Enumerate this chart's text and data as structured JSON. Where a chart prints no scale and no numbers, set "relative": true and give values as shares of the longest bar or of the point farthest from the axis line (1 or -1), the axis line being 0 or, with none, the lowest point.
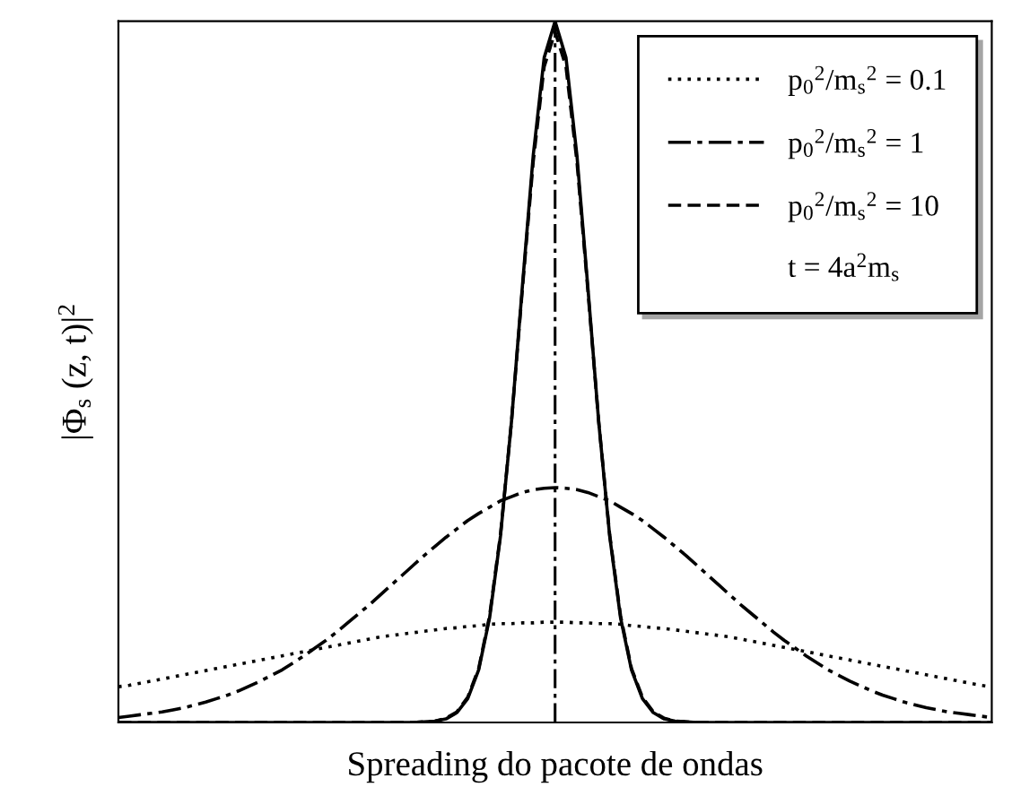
{
  "chart_data": {
    "type": "line",
    "relative": true,
    "ylabel": "|Φ$_{s}$ (z, t)|$^{2}$",
    "xlabel": "Spreading do pacote de ondas",
    "categories": [
      null,
      null,
      null,
      null,
      null,
      null,
      null,
      null,
      null,
      null,
      null,
      null,
      null,
      null,
      null,
      null,
      null,
      null,
      null,
      null,
      null,
      null,
      null,
      null,
      null,
      null,
      null,
      null,
      null,
      null,
      null,
      null,
      null,
      null,
      null,
      null,
      null,
      null,
      null,
      null,
      null,
      null,
      null,
      null,
      null,
      null,
      null,
      null,
      null,
      null,
      null,
      null,
      null,
      null,
      null,
      null,
      null,
      null,
      null,
      null,
      null,
      null,
      null,
      null,
      null,
      null,
      null,
      null,
      null,
      null,
      null,
      null,
      null,
      null,
      null,
      null,
      null,
      null,
      null,
      null,
      null
    ],
    "series": [
      {
        "color": "#000000",
        "line_style": "solid",
        "values": [
          0,
          0,
          0,
          0,
          0,
          0,
          0,
          0,
          0,
          0,
          0,
          0,
          0,
          0,
          0,
          0,
          0,
          0,
          0,
          0,
          0,
          0,
          0,
          0,
          0,
          0,
          0,
          0,
          0.001,
          0.002,
          0.005,
          0.014,
          0.034,
          0.075,
          0.149,
          0.266,
          0.428,
          0.621,
          0.809,
          0.948,
          1,
          0.948,
          0.809,
          0.621,
          0.428,
          0.266,
          0.149,
          0.075,
          0.034,
          0.014,
          0.005,
          0.002,
          0.001,
          0,
          0,
          0,
          0,
          0,
          0,
          0,
          0,
          0,
          0,
          0,
          0,
          0,
          0,
          0,
          0,
          0,
          0,
          0,
          0,
          0,
          0,
          0,
          0,
          0,
          0,
          0,
          0
        ]
      },
      {
        "name": "p$_{0}$$^{2}$/m$_{s}$$^{2}$ = 0.1",
        "color": "#000000",
        "line_style": "dotted",
        "values": [
          0.051,
          0.053,
          0.056,
          0.059,
          0.062,
          0.065,
          0.068,
          0.071,
          0.074,
          0.077,
          0.08,
          0.083,
          0.086,
          0.089,
          0.092,
          0.095,
          0.098,
          0.101,
          0.104,
          0.107,
          0.11,
          0.113,
          0.116,
          0.119,
          0.122,
          0.124,
          0.126,
          0.128,
          0.13,
          0.132,
          0.134,
          0.135,
          0.137,
          0.138,
          0.14,
          0.141,
          0.141,
          0.142,
          0.142,
          0.143,
          0.143,
          0.143,
          0.142,
          0.142,
          0.141,
          0.141,
          0.14,
          0.138,
          0.137,
          0.135,
          0.134,
          0.132,
          0.13,
          0.128,
          0.126,
          0.124,
          0.122,
          0.119,
          0.116,
          0.113,
          0.11,
          0.107,
          0.104,
          0.101,
          0.098,
          0.095,
          0.092,
          0.089,
          0.086,
          0.083,
          0.08,
          0.077,
          0.074,
          0.071,
          0.068,
          0.065,
          0.062,
          0.059,
          0.056,
          0.053,
          0.051
        ]
      },
      {
        "name": "p$_{0}$$^{2}$/m$_{s}$$^{2}$ = 1",
        "color": "#000000",
        "line_style": "dashdot",
        "values": [
          0.007,
          0.009,
          0.011,
          0.013,
          0.015,
          0.018,
          0.021,
          0.025,
          0.029,
          0.034,
          0.039,
          0.045,
          0.052,
          0.059,
          0.067,
          0.075,
          0.085,
          0.095,
          0.106,
          0.117,
          0.129,
          0.142,
          0.155,
          0.168,
          0.182,
          0.196,
          0.21,
          0.224,
          0.238,
          0.251,
          0.264,
          0.276,
          0.288,
          0.298,
          0.307,
          0.316,
          0.322,
          0.328,
          0.332,
          0.334,
          0.335,
          0.334,
          0.332,
          0.328,
          0.322,
          0.316,
          0.307,
          0.298,
          0.288,
          0.276,
          0.264,
          0.251,
          0.238,
          0.224,
          0.21,
          0.196,
          0.182,
          0.168,
          0.155,
          0.142,
          0.129,
          0.117,
          0.106,
          0.095,
          0.085,
          0.075,
          0.067,
          0.059,
          0.052,
          0.045,
          0.039,
          0.034,
          0.029,
          0.025,
          0.021,
          0.018,
          0.015,
          0.013,
          0.011,
          0.009,
          0.007
        ]
      },
      {
        "name": "p$_{0}$$^{2}$/m$_{s}$$^{2}$ = 10",
        "color": "#000000",
        "line_style": "dashed",
        "values": [
          0,
          0,
          0,
          0,
          0,
          0,
          0,
          0,
          0,
          0,
          0,
          0,
          0,
          0,
          0,
          0,
          0,
          0,
          0,
          0,
          0,
          0,
          0,
          0,
          0,
          0,
          0,
          0,
          0.001,
          0.002,
          0.006,
          0.015,
          0.036,
          0.077,
          0.152,
          0.268,
          0.428,
          0.617,
          0.8,
          0.935,
          0.985,
          0.935,
          0.8,
          0.617,
          0.428,
          0.268,
          0.152,
          0.077,
          0.036,
          0.015,
          0.006,
          0.002,
          0.001,
          0,
          0,
          0,
          0,
          0,
          0,
          0,
          0,
          0,
          0,
          0,
          0,
          0,
          0,
          0,
          0,
          0,
          0,
          0,
          0,
          0,
          0,
          0,
          0,
          0,
          0,
          0,
          0
        ]
      }
    ],
    "annotations": [
      "t = 4a$^{2}$m$_{s}$"
    ],
    "legend": "top right",
    "grid": false
  }
}
